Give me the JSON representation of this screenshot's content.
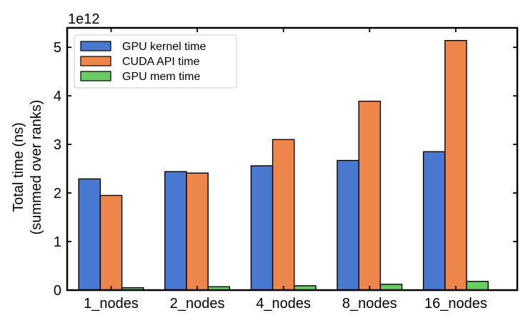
{
  "chart_data": {
    "type": "bar",
    "title": "",
    "xlabel": "",
    "ylabel_line1": "Total time (ns)",
    "ylabel_line2": "(summed over ranks)",
    "y_multiplier_label": "1e12",
    "ylim": [
      0,
      5.4
    ],
    "yticks": [
      0,
      1,
      2,
      3,
      4,
      5
    ],
    "categories": [
      "1_nodes",
      "2_nodes",
      "4_nodes",
      "8_nodes",
      "16_nodes"
    ],
    "series": [
      {
        "name": "GPU kernel time",
        "color": "#4878d0",
        "values": [
          2.29,
          2.44,
          2.56,
          2.67,
          2.85
        ]
      },
      {
        "name": "CUDA API time",
        "color": "#ee854a",
        "values": [
          1.95,
          2.41,
          3.1,
          3.89,
          5.14
        ]
      },
      {
        "name": "GPU mem time",
        "color": "#6acc64",
        "values": [
          0.05,
          0.07,
          0.09,
          0.12,
          0.18
        ]
      }
    ],
    "legend_position": "upper-left",
    "grid": false
  }
}
